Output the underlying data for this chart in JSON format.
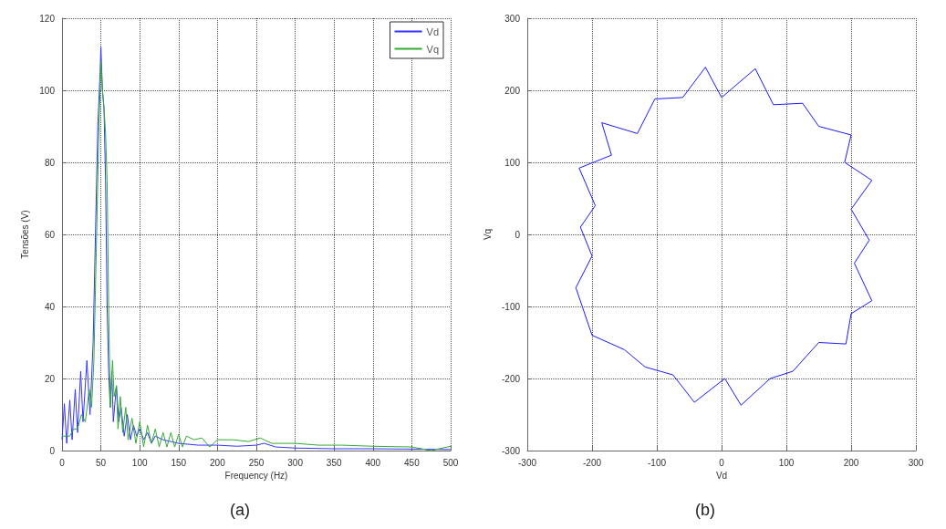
{
  "chart_data": [
    {
      "type": "line",
      "xlabel": "Frequency (Hz)",
      "ylabel": "Tensões (V)",
      "xlim": [
        0,
        500
      ],
      "ylim": [
        0,
        120
      ],
      "xticks": [
        0,
        50,
        100,
        150,
        200,
        250,
        300,
        350,
        400,
        450,
        500
      ],
      "yticks": [
        0,
        20,
        40,
        60,
        80,
        100,
        120
      ],
      "grid": true,
      "legend": "top right",
      "marker": "none",
      "annotations": [
        "(a)"
      ],
      "series": [
        {
          "name": "Vd",
          "color": "#3333ff",
          "x": [
            0,
            3,
            6,
            10,
            13,
            17,
            20,
            24,
            27,
            32,
            36,
            40,
            43,
            46,
            49,
            50,
            52,
            54,
            56,
            58,
            60,
            62,
            64,
            66,
            70,
            73,
            76,
            80,
            84,
            88,
            92,
            96,
            100,
            105,
            110,
            115,
            120,
            130,
            140,
            150,
            175,
            200,
            225,
            250,
            260,
            275,
            300,
            350,
            400,
            450,
            500
          ],
          "values": [
            3,
            13,
            2,
            14,
            3,
            17,
            5,
            22,
            8,
            25,
            10,
            30,
            60,
            90,
            105,
            112,
            100,
            95,
            75,
            40,
            22,
            12,
            22,
            8,
            18,
            8,
            12,
            4,
            10,
            3,
            7,
            4,
            6,
            3,
            5,
            2,
            4,
            3,
            2.5,
            2,
            1.5,
            1.5,
            1.2,
            1.5,
            2,
            1,
            0.7,
            0.5,
            0.5,
            0.4,
            0.3
          ]
        },
        {
          "name": "Vq",
          "color": "#33aa33",
          "x": [
            0,
            5,
            10,
            15,
            20,
            25,
            30,
            35,
            38,
            41,
            44,
            47,
            50,
            52,
            54,
            56,
            58,
            60,
            62,
            65,
            67,
            70,
            72,
            75,
            78,
            82,
            85,
            90,
            95,
            100,
            105,
            110,
            115,
            120,
            125,
            130,
            135,
            140,
            145,
            150,
            155,
            160,
            170,
            180,
            190,
            200,
            220,
            240,
            255,
            270,
            300,
            330,
            360,
            400,
            450,
            475,
            500
          ],
          "values": [
            4,
            4,
            4,
            6,
            6,
            10,
            8,
            17,
            12,
            25,
            55,
            85,
            108,
            100,
            95,
            88,
            75,
            40,
            12,
            25,
            15,
            18,
            6,
            15,
            5,
            12,
            3,
            9,
            2,
            8,
            1,
            7,
            2,
            6,
            1,
            5,
            1,
            5,
            1,
            4.5,
            1,
            4,
            3,
            3.5,
            1,
            3,
            3,
            2.5,
            3.5,
            2,
            2,
            1.5,
            1.5,
            1.2,
            1,
            0,
            1.2
          ]
        }
      ]
    },
    {
      "type": "line",
      "xlabel": "Vd",
      "ylabel": "Vq",
      "xlim": [
        -300,
        300
      ],
      "ylim": [
        -300,
        300
      ],
      "xticks": [
        -300,
        -200,
        -100,
        0,
        100,
        200,
        300
      ],
      "yticks": [
        -300,
        -200,
        -100,
        0,
        100,
        200,
        300
      ],
      "grid": true,
      "marker": "none",
      "annotations": [
        "(b)"
      ],
      "series": [
        {
          "color": "#1a1aff",
          "x": [
            0,
            52,
            80,
            125,
            150,
            200
          ],
          "values": [
            190,
            230,
            180,
            182,
            150,
            138
          ]
        },
        {
          "color": "#1a1aff",
          "x": [
            190,
            200
          ],
          "values": [
            100,
            138
          ]
        },
        {
          "color": "#1a1aff",
          "x": [
            190,
            232
          ],
          "values": [
            100,
            75
          ]
        },
        {
          "color": "#1a1aff",
          "x": [
            200,
            232
          ],
          "values": [
            35,
            75
          ]
        },
        {
          "color": "#1a1aff",
          "x": [
            200,
            228
          ],
          "values": [
            35,
            -8
          ]
        },
        {
          "color": "#1a1aff",
          "x": [
            205,
            228
          ],
          "values": [
            -40,
            -8
          ]
        },
        {
          "color": "#1a1aff",
          "x": [
            205,
            232
          ],
          "values": [
            -40,
            -92
          ]
        },
        {
          "color": "#1a1aff",
          "x": [
            -225,
            -200,
            -150,
            -118,
            -75,
            -42,
            5,
            30,
            75,
            110,
            150,
            192,
            200,
            232
          ],
          "values": [
            -74,
            -140,
            -160,
            -184,
            -195,
            -233,
            -200,
            -237,
            -200,
            -190,
            -150,
            -152,
            -110,
            -92
          ]
        },
        {
          "color": "#1a1aff",
          "x": [
            -225,
            -200
          ],
          "values": [
            -74,
            -30
          ]
        },
        {
          "color": "#1a1aff",
          "x": [
            -218,
            -200
          ],
          "values": [
            10,
            -30
          ]
        },
        {
          "color": "#1a1aff",
          "x": [
            -218,
            -195
          ],
          "values": [
            10,
            40
          ]
        },
        {
          "color": "#1a1aff",
          "x": [
            -220,
            -195
          ],
          "values": [
            92,
            40
          ]
        },
        {
          "color": "#1a1aff",
          "x": [
            -220,
            -170
          ],
          "values": [
            92,
            110
          ]
        },
        {
          "color": "#1a1aff",
          "x": [
            -185,
            -170
          ],
          "values": [
            155,
            110
          ]
        },
        {
          "color": "#1a1aff",
          "x": [
            -185,
            -130,
            -103,
            -60,
            -25,
            0
          ],
          "values": [
            155,
            140,
            188,
            190,
            232,
            190
          ]
        }
      ]
    }
  ]
}
